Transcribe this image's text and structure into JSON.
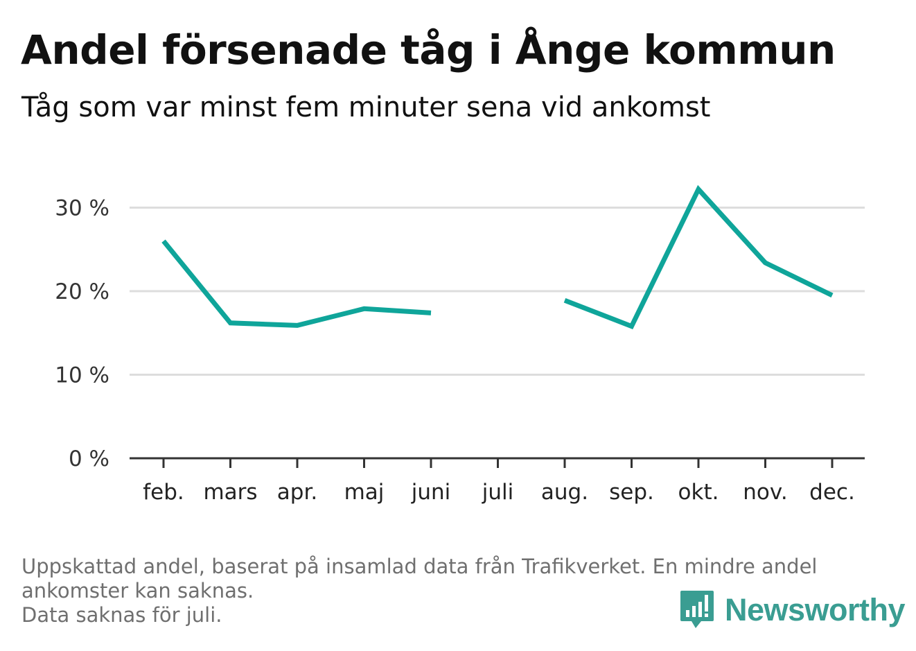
{
  "title": "Andel försenade tåg i Ånge kommun",
  "subtitle": "Tåg som var minst fem minuter sena vid ankomst",
  "footer": {
    "line1": "Uppskattad andel, baserat på insamlad data från Trafikverket. En mindre andel",
    "line2": "ankomster kan saknas.",
    "line3": "Data saknas för juli."
  },
  "brand": {
    "name": "Newsworthy",
    "icon": "newsworthy-chart-bubble-icon",
    "color": "#3a9d92"
  },
  "chart_data": {
    "type": "line",
    "categories": [
      "feb.",
      "mars",
      "apr.",
      "maj",
      "juni",
      "juli",
      "aug.",
      "sep.",
      "okt.",
      "nov.",
      "dec."
    ],
    "series": [
      {
        "values": [
          26.0,
          16.2,
          15.9,
          17.9,
          17.4,
          null,
          18.9,
          15.8,
          32.2,
          23.4,
          19.5
        ],
        "color": "#0fa59a"
      }
    ],
    "ylim": [
      0,
      33
    ],
    "yticks": [
      0,
      10,
      20,
      30
    ],
    "ytick_labels": [
      "0 %",
      "10 %",
      "20 %",
      "30 %"
    ],
    "grid": true,
    "gridline_color": "#dddddd",
    "axis_color": "#333333"
  }
}
